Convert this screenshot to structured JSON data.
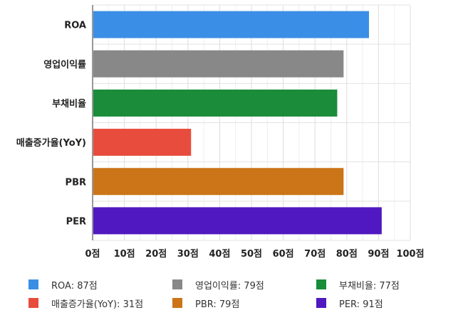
{
  "chart_data": {
    "type": "bar",
    "orientation": "horizontal",
    "categories": [
      "ROA",
      "영업이익률",
      "부채비율",
      "매출증가율(YoY)",
      "PBR",
      "PER"
    ],
    "values": [
      87,
      79,
      77,
      31,
      79,
      91
    ],
    "colors": [
      "#3a8ee6",
      "#888888",
      "#1a8c3a",
      "#e84c3d",
      "#cc7418",
      "#5018c0"
    ],
    "xlim": [
      0,
      100
    ],
    "x_ticks": [
      0,
      10,
      20,
      30,
      40,
      50,
      60,
      70,
      80,
      90,
      100
    ],
    "x_tick_labels": [
      "0점",
      "10점",
      "20점",
      "30점",
      "40점",
      "50점",
      "60점",
      "70점",
      "80점",
      "90점",
      "100점"
    ],
    "grid": true,
    "legend_position": "bottom",
    "legend": [
      "ROA: 87점",
      "영업이익률: 79점",
      "부채비율: 77점",
      "매출증가율(YoY): 31점",
      "PBR: 79점",
      "PER: 91점"
    ]
  }
}
